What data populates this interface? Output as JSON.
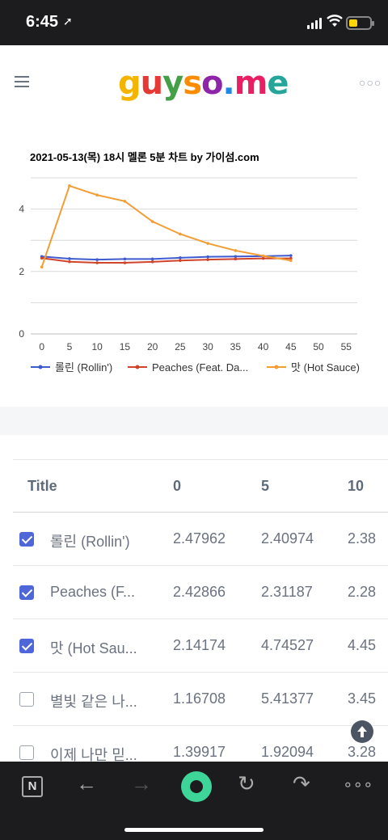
{
  "status": {
    "time": "6:45"
  },
  "header": {
    "logo_letters": [
      "g",
      "u",
      "y",
      "s",
      "o",
      ".",
      "m",
      "e"
    ],
    "logo_colors": [
      "#f4b400",
      "#e53935",
      "#43a047",
      "#fb8c00",
      "#8e24aa",
      "#1e88e5",
      "#e91e63",
      "#26a69a"
    ],
    "more_icon": "ellipsis-icon",
    "menu_icon": "hamburger-icon"
  },
  "chart_data": {
    "type": "line",
    "title": "2021-05-13(목) 18시 멜론 5분 차트 by 가이섬.com",
    "x": [
      0,
      5,
      10,
      15,
      20,
      25,
      30,
      35,
      40,
      45
    ],
    "xticks": [
      0,
      5,
      10,
      15,
      20,
      25,
      30,
      35,
      40,
      45,
      50,
      55
    ],
    "yticks": [
      0,
      2,
      4
    ],
    "xlim": [
      -2,
      57
    ],
    "ylim": [
      0,
      5
    ],
    "grid": true,
    "legend_position": "bottom",
    "series": [
      {
        "name": "롤린 (Rollin')",
        "color": "#3f5bd0",
        "values": [
          2.47962,
          2.40974,
          2.38,
          2.4,
          2.4,
          2.44,
          2.47,
          2.48,
          2.49,
          2.51
        ]
      },
      {
        "name": "Peaches (Feat. Da...",
        "color": "#d0442b",
        "values": [
          2.42866,
          2.31187,
          2.28,
          2.28,
          2.31,
          2.35,
          2.38,
          2.4,
          2.42,
          2.42
        ]
      },
      {
        "name": "맛 (Hot Sauce)",
        "color": "#f29d35",
        "values": [
          2.14174,
          4.74527,
          4.45,
          4.25,
          3.6,
          3.2,
          2.9,
          2.67,
          2.5,
          2.35
        ]
      }
    ]
  },
  "table": {
    "headers": {
      "title": "Title",
      "c0": "0",
      "c1": "5",
      "c2": "10"
    },
    "rows": [
      {
        "checked": true,
        "title": "롤린 (Rollin')",
        "c0": "2.47962",
        "c1": "2.40974",
        "c2": "2.38"
      },
      {
        "checked": true,
        "title": "Peaches (F...",
        "c0": "2.42866",
        "c1": "2.31187",
        "c2": "2.28"
      },
      {
        "checked": true,
        "title": "맛 (Hot Sau...",
        "c0": "2.14174",
        "c1": "4.74527",
        "c2": "4.45"
      },
      {
        "checked": false,
        "title": "별빛 같은 나...",
        "c0": "1.16708",
        "c1": "5.41377",
        "c2": "3.45"
      },
      {
        "checked": false,
        "title": "이제 나만 믿...",
        "c0": "1.39917",
        "c1": "1.92094",
        "c2": "3.28"
      }
    ]
  },
  "scroll_top_icon": "arrow-up-icon",
  "toolbar": {
    "n_label": "N",
    "back_icon": "←",
    "forward_icon": "→",
    "reload_icon": "↻",
    "share_icon": "↷",
    "more_icon": "∘∘∘"
  }
}
